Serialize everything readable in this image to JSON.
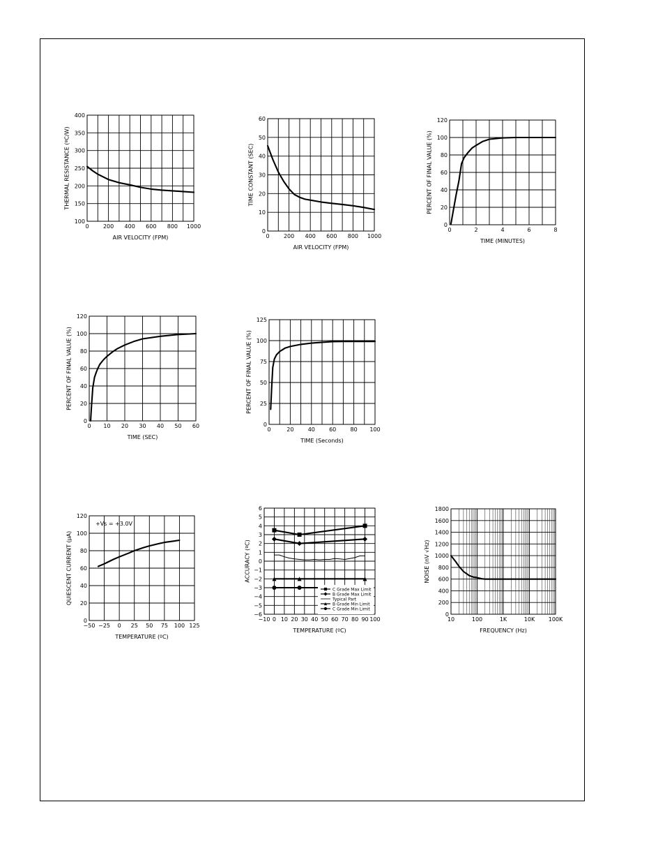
{
  "chart_data": [
    {
      "id": "c1",
      "type": "line",
      "ylabel": "THERMAL RESISTANCE (ºC/W)",
      "xlabel": "AIR VELOCITY (FPM)",
      "xlim": [
        0,
        1000
      ],
      "ylim": [
        100,
        400
      ],
      "xticks": [
        0,
        200,
        400,
        600,
        800,
        1000
      ],
      "yticks": [
        100,
        150,
        200,
        250,
        300,
        350,
        400
      ],
      "xgrid": 10,
      "ygrid": 6,
      "series": [
        {
          "x": [
            0,
            50,
            100,
            200,
            300,
            400,
            500,
            600,
            700,
            800,
            900,
            1000
          ],
          "y": [
            255,
            243,
            233,
            218,
            209,
            203,
            196,
            191,
            188,
            186,
            184,
            182
          ]
        }
      ]
    },
    {
      "id": "c2",
      "type": "line",
      "ylabel": "TIME CONSTANT (SEC)",
      "xlabel": "AIR VELOCITY (FPM)",
      "xlim": [
        0,
        1000
      ],
      "ylim": [
        0,
        60
      ],
      "xticks": [
        0,
        200,
        400,
        600,
        800,
        1000
      ],
      "yticks": [
        0,
        10,
        20,
        30,
        40,
        50,
        60
      ],
      "xgrid": 10,
      "ygrid": 6,
      "series": [
        {
          "x": [
            0,
            50,
            100,
            150,
            200,
            250,
            300,
            350,
            400,
            500,
            600,
            700,
            800,
            900,
            1000
          ],
          "y": [
            45.5,
            38,
            31.5,
            26.5,
            22.5,
            19.5,
            18,
            17,
            16.5,
            15.5,
            14.8,
            14.2,
            13.5,
            12.6,
            11.5
          ]
        }
      ]
    },
    {
      "id": "c3",
      "type": "line",
      "ylabel": "PERCENT OF FINAL VALUE (%)",
      "xlabel": "TIME (MINUTES)",
      "xlim": [
        0,
        8
      ],
      "ylim": [
        0,
        120
      ],
      "xticks": [
        0,
        2,
        4,
        6,
        8
      ],
      "yticks": [
        0,
        20,
        40,
        60,
        80,
        100,
        120
      ],
      "xgrid": 8,
      "ygrid": 6,
      "series": [
        {
          "x": [
            0.1,
            0.3,
            0.5,
            0.7,
            0.9,
            1.1,
            1.4,
            1.7,
            2.0,
            2.5,
            3.0,
            4.0,
            5.0,
            6.0,
            8.0
          ],
          "y": [
            1,
            18,
            35,
            50,
            70,
            77,
            83,
            88,
            91,
            95.5,
            98,
            99.5,
            100,
            100,
            100
          ]
        }
      ]
    },
    {
      "id": "c4",
      "type": "line",
      "ylabel": "PERCENT OF FINAL VALUE (%)",
      "xlabel": "TIME (SEC)",
      "xlim": [
        0,
        60
      ],
      "ylim": [
        0,
        120
      ],
      "xticks": [
        0,
        10,
        20,
        30,
        40,
        50,
        60
      ],
      "yticks": [
        0,
        20,
        40,
        60,
        80,
        100,
        120
      ],
      "xgrid": 6,
      "ygrid": 6,
      "series": [
        {
          "x": [
            0.8,
            1.2,
            2,
            3,
            4,
            5,
            6,
            8,
            10,
            13,
            16,
            20,
            25,
            30,
            40,
            50,
            60
          ],
          "y": [
            0,
            15,
            38,
            50,
            56,
            61,
            65,
            70,
            74,
            79,
            83,
            87,
            91,
            94,
            97,
            99,
            100
          ]
        }
      ]
    },
    {
      "id": "c5",
      "type": "line",
      "ylabel": "PERCENT OF FINAL VALUE (%)",
      "xlabel": "TIME (Seconds)",
      "xlim": [
        0,
        100
      ],
      "ylim": [
        0,
        125
      ],
      "xticks": [
        0,
        20,
        40,
        60,
        80,
        100
      ],
      "yticks": [
        0,
        25,
        50,
        75,
        100,
        125
      ],
      "xgrid": 10,
      "ygrid": 5,
      "series": [
        {
          "x": [
            1.5,
            2.5,
            3.5,
            5,
            7,
            10,
            15,
            20,
            30,
            40,
            50,
            60,
            70,
            80,
            90,
            100
          ],
          "y": [
            18,
            45,
            68,
            78,
            83,
            87,
            91,
            93,
            95.5,
            97,
            98,
            98.8,
            99,
            99,
            99,
            99
          ]
        }
      ]
    },
    {
      "id": "c6",
      "type": "line",
      "ylabel": "QUIESCENT CURRENT (µA)",
      "xlabel": "TEMPERATURE (ºC)",
      "annotation": "+Vs = +3.0V",
      "xlim": [
        -50,
        125
      ],
      "ylim": [
        0,
        120
      ],
      "xticks": [
        -50,
        -25,
        0,
        25,
        50,
        75,
        100,
        125
      ],
      "yticks": [
        0,
        20,
        40,
        60,
        80,
        100,
        120
      ],
      "xgrid": 7,
      "ygrid": 6,
      "series": [
        {
          "x": [
            -35,
            -25,
            -10,
            0,
            15,
            25,
            40,
            50,
            65,
            75,
            90,
            100
          ],
          "y": [
            62,
            65,
            70,
            73,
            77,
            80,
            83.5,
            85.5,
            88,
            89.5,
            91,
            92
          ]
        }
      ]
    },
    {
      "id": "c7",
      "type": "line",
      "ylabel": "ACCURACY (ºC)",
      "xlabel": "TEMPERATURE (ºC)",
      "xlim": [
        -10,
        100
      ],
      "ylim": [
        -6,
        6
      ],
      "xticks": [
        -10,
        0,
        10,
        20,
        30,
        40,
        50,
        60,
        70,
        80,
        90,
        100
      ],
      "yticks": [
        -6,
        -5,
        -4,
        -3,
        -2,
        -1,
        0,
        1,
        2,
        3,
        4,
        5,
        6
      ],
      "xgrid": 11,
      "ygrid": 12,
      "legend": [
        "C Grade Max Limit",
        "B Grade Max Limit",
        "Typical Part",
        "B Grade Min Limit",
        "C Grade Min Limit"
      ],
      "legend_position": "bottom-right",
      "series": [
        {
          "name": "C Grade Max Limit",
          "marker": "square",
          "x": [
            0,
            25,
            90
          ],
          "y": [
            3.5,
            3.0,
            4.0
          ]
        },
        {
          "name": "B Grade Max Limit",
          "marker": "diamond",
          "x": [
            0,
            25,
            90
          ],
          "y": [
            2.5,
            2.0,
            2.5
          ]
        },
        {
          "name": "Typical Part",
          "marker": "none",
          "x": [
            0,
            5,
            10,
            15,
            20,
            25,
            30,
            35,
            40,
            45,
            50,
            55,
            60,
            65,
            70,
            75,
            80,
            85,
            90
          ],
          "y": [
            0.7,
            0.7,
            0.5,
            0.35,
            0.25,
            0.2,
            0.15,
            0.15,
            0.2,
            0.15,
            0.2,
            0.2,
            0.3,
            0.25,
            0.2,
            0.3,
            0.4,
            0.6,
            0.6
          ]
        },
        {
          "name": "B Grade Min Limit",
          "marker": "triangle",
          "x": [
            0,
            25,
            90
          ],
          "y": [
            -2,
            -2,
            -2
          ]
        },
        {
          "name": "C Grade Min Limit",
          "marker": "circle",
          "x": [
            0,
            25,
            90
          ],
          "y": [
            -3,
            -3,
            -3
          ]
        }
      ]
    },
    {
      "id": "c8",
      "type": "line",
      "ylabel": "NOISE (nV √Hz)",
      "xlabel": "FREQUENCY (Hz)",
      "xscale": "log",
      "xlim": [
        10,
        100000
      ],
      "ylim": [
        0,
        1800
      ],
      "xticks": [
        10,
        100,
        1000,
        10000,
        100000
      ],
      "xticklabels": [
        "10",
        "100",
        "1K",
        "10K",
        "100K"
      ],
      "yticks": [
        0,
        200,
        400,
        600,
        800,
        1000,
        1200,
        1400,
        1600,
        1800
      ],
      "ygrid": 9,
      "series": [
        {
          "x": [
            10,
            15,
            20,
            30,
            50,
            70,
            100,
            150,
            200,
            300,
            1000,
            10000,
            100000
          ],
          "y": [
            1000,
            900,
            820,
            730,
            660,
            635,
            625,
            605,
            600,
            600,
            600,
            600,
            600
          ]
        }
      ]
    }
  ]
}
